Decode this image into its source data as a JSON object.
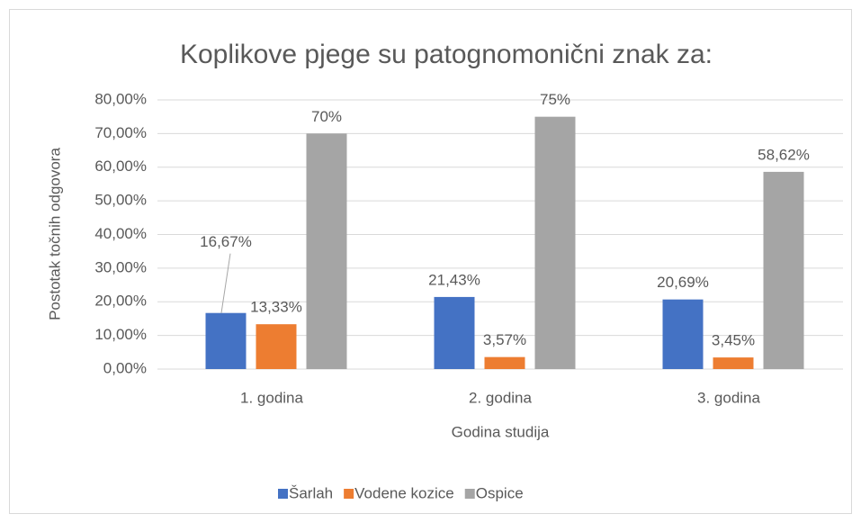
{
  "chart_data": {
    "type": "bar",
    "title": "Koplikove pjege su patognomonični znak za:",
    "x_label": "Godina studija",
    "y_label": "Postotak točnih odgovora",
    "categories": [
      "1. godina",
      "2. godina",
      "3. godina"
    ],
    "series": [
      {
        "name": "Šarlah",
        "color": "#4472c4",
        "values": [
          16.67,
          21.43,
          20.69
        ],
        "value_labels": [
          "16,67%",
          "21,43%",
          "20,69%"
        ]
      },
      {
        "name": "Vodene kozice",
        "color": "#ed7d31",
        "values": [
          13.33,
          3.57,
          3.45
        ],
        "value_labels": [
          "13,33%",
          "3,57%",
          "3,45%"
        ]
      },
      {
        "name": "Ospice",
        "color": "#a5a5a5",
        "values": [
          70,
          75,
          58.62
        ],
        "value_labels": [
          "70%",
          "75%",
          "58,62%"
        ]
      }
    ],
    "ylim": [
      0,
      80
    ],
    "yticks": [
      {
        "value": 0,
        "label": "0,00%"
      },
      {
        "value": 10,
        "label": "10,00%"
      },
      {
        "value": 20,
        "label": "20,00%"
      },
      {
        "value": 30,
        "label": "30,00%"
      },
      {
        "value": 40,
        "label": "40,00%"
      },
      {
        "value": 50,
        "label": "50,00%"
      },
      {
        "value": 60,
        "label": "60,00%"
      },
      {
        "value": 70,
        "label": "70,00%"
      },
      {
        "value": 80,
        "label": "80,00%"
      }
    ],
    "grid": true,
    "legend": "bottom"
  }
}
